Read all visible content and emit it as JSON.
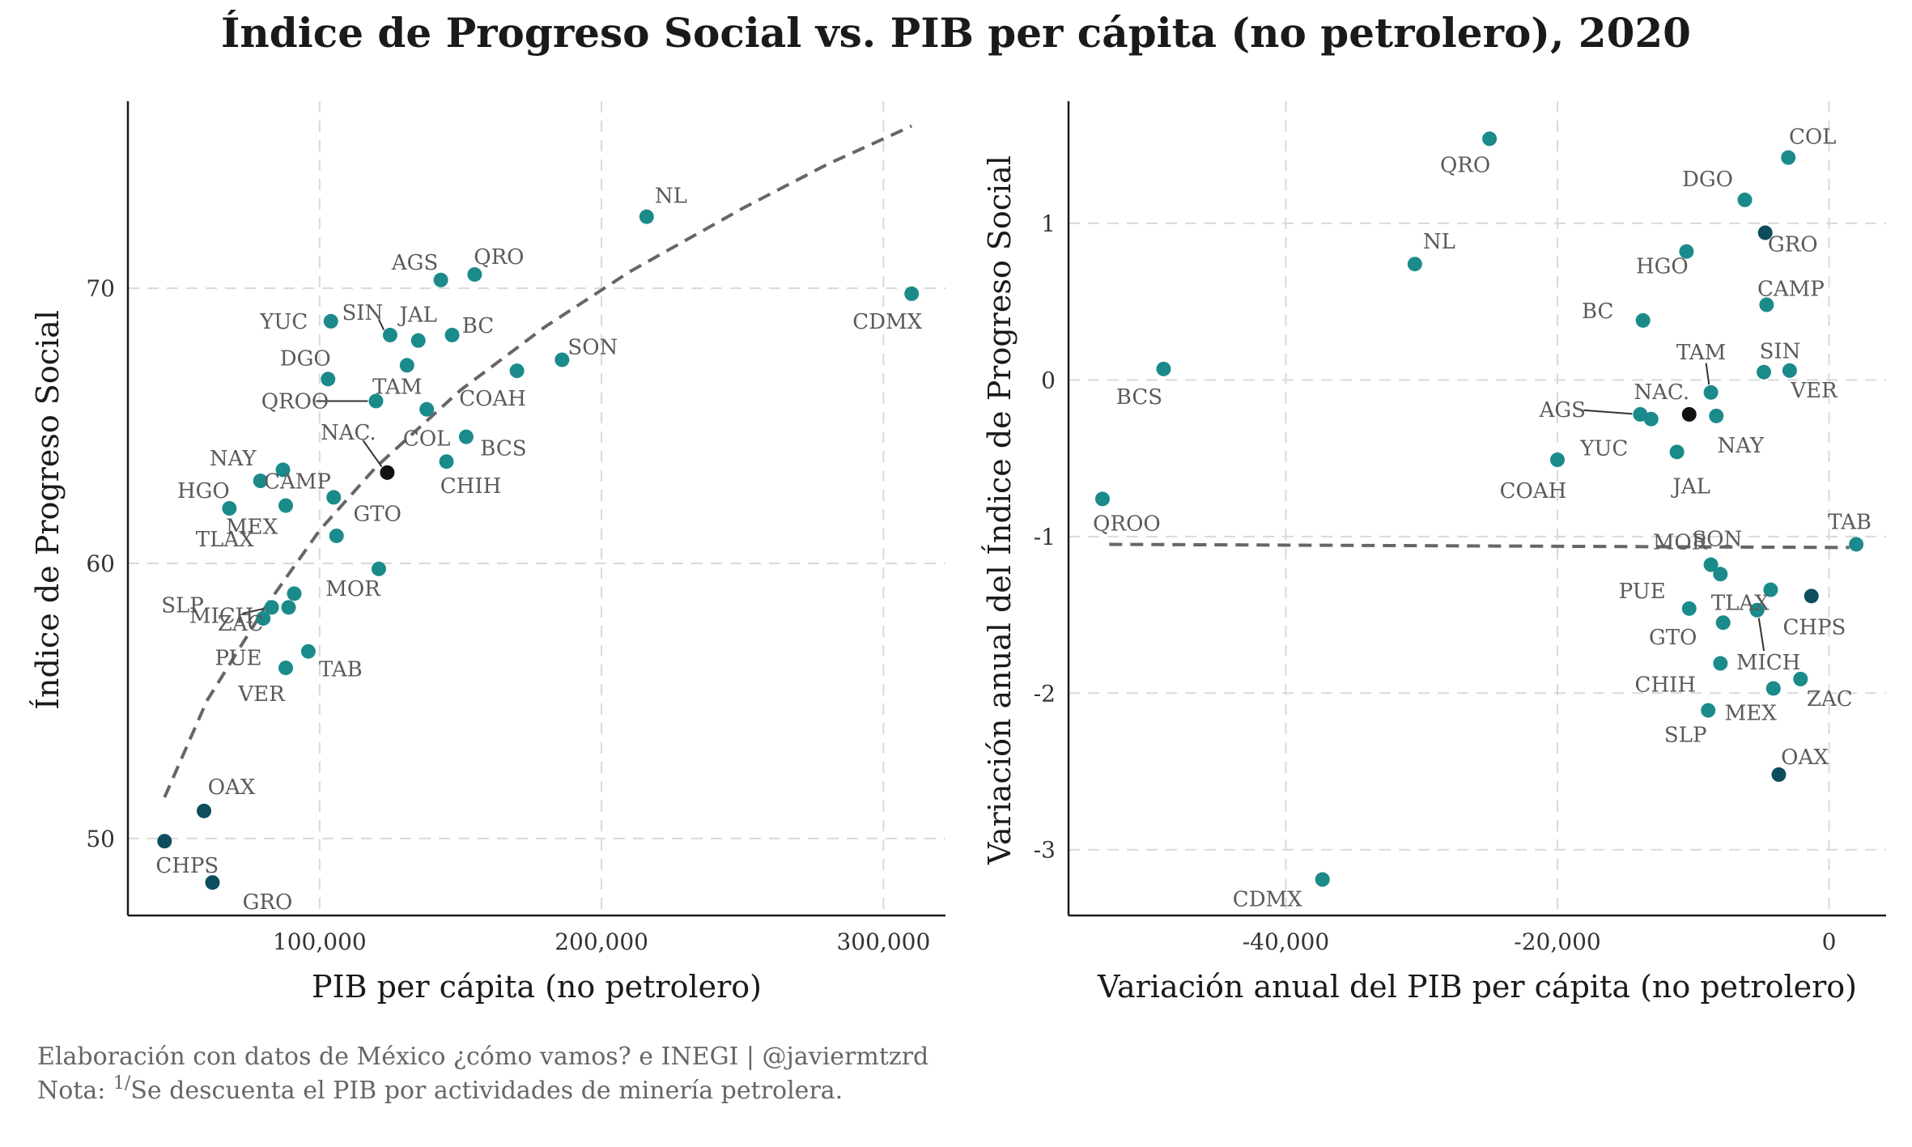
{
  "title": "Índice de Progreso Social vs. PIB per cápita (no petrolero), 2020",
  "caption": {
    "line1": "Elaboración con datos de México ¿cómo vamos? e INEGI | @javiermtzrd",
    "line2_prefix": "Nota: ",
    "line2_super": "1/",
    "line2_rest": "Se descuenta el PIB por actividades de minería petrolera."
  },
  "colors": {
    "teal": "#1b8a8a",
    "dark": "#0d4d5e",
    "national": "#111111"
  },
  "chart_data": [
    {
      "type": "scatter",
      "xlabel": "PIB per cápita (no petrolero)",
      "ylabel": "Índice de Progreso Social",
      "xlim": [
        32000,
        322000
      ],
      "ylim": [
        47.2,
        76.8
      ],
      "xticks": [
        100000,
        200000,
        300000
      ],
      "xtick_labels": [
        "100,000",
        "200,000",
        "300,000"
      ],
      "yticks": [
        50,
        60,
        70
      ],
      "ytick_labels": [
        "50",
        "60",
        "70"
      ],
      "grid": true,
      "trend": "dashed-log",
      "trend_points": [
        [
          45000,
          51.5
        ],
        [
          60000,
          55.0
        ],
        [
          80000,
          58.3
        ],
        [
          100000,
          61.2
        ],
        [
          120000,
          63.5
        ],
        [
          150000,
          66.3
        ],
        [
          180000,
          68.6
        ],
        [
          210000,
          70.6
        ],
        [
          250000,
          72.9
        ],
        [
          280000,
          74.5
        ],
        [
          310000,
          75.9
        ]
      ],
      "points": [
        {
          "label": "NL",
          "x": 216000,
          "y": 72.6,
          "group": "teal"
        },
        {
          "label": "CDMX",
          "x": 310000,
          "y": 69.8,
          "group": "teal"
        },
        {
          "label": "AGS",
          "x": 143000,
          "y": 70.3,
          "group": "teal"
        },
        {
          "label": "QRO",
          "x": 155000,
          "y": 70.5,
          "group": "teal"
        },
        {
          "label": "YUC",
          "x": 104000,
          "y": 68.8,
          "group": "teal"
        },
        {
          "label": "SIN",
          "x": 125000,
          "y": 68.3,
          "group": "teal"
        },
        {
          "label": "JAL",
          "x": 135000,
          "y": 68.1,
          "group": "teal"
        },
        {
          "label": "BC",
          "x": 147000,
          "y": 68.3,
          "group": "teal"
        },
        {
          "label": "SON",
          "x": 186000,
          "y": 67.4,
          "group": "teal"
        },
        {
          "label": "DGO",
          "x": 103000,
          "y": 66.7,
          "group": "teal"
        },
        {
          "label": "TAM",
          "x": 131000,
          "y": 67.2,
          "group": "teal"
        },
        {
          "label": "COAH",
          "x": 170000,
          "y": 67.0,
          "group": "teal"
        },
        {
          "label": "QROO",
          "x": 120000,
          "y": 65.9,
          "group": "teal"
        },
        {
          "label": "COL",
          "x": 138000,
          "y": 65.6,
          "group": "teal"
        },
        {
          "label": "BCS",
          "x": 152000,
          "y": 64.6,
          "group": "teal"
        },
        {
          "label": "CHIH",
          "x": 145000,
          "y": 63.7,
          "group": "teal"
        },
        {
          "label": "NAC.",
          "x": 124000,
          "y": 63.3,
          "group": "national"
        },
        {
          "label": "NAY",
          "x": 79000,
          "y": 63.0,
          "group": "teal"
        },
        {
          "label": "CAMP",
          "x": 87000,
          "y": 63.4,
          "group": "teal"
        },
        {
          "label": "GTO",
          "x": 105000,
          "y": 62.4,
          "group": "teal"
        },
        {
          "label": "HGO",
          "x": 68000,
          "y": 62.0,
          "group": "teal"
        },
        {
          "label": "MEX",
          "x": 88000,
          "y": 62.1,
          "group": "teal"
        },
        {
          "label": "TLAX",
          "x": 106000,
          "y": 61.0,
          "group": "teal"
        },
        {
          "label": "MOR",
          "x": 121000,
          "y": 59.8,
          "group": "teal"
        },
        {
          "label": "SLP",
          "x": 91000,
          "y": 58.9,
          "group": "teal"
        },
        {
          "label": "MICH",
          "x": 83000,
          "y": 58.4,
          "group": "teal"
        },
        {
          "label": "PUE",
          "x": 89000,
          "y": 58.4,
          "group": "teal"
        },
        {
          "label": "ZAC",
          "x": 80000,
          "y": 58.0,
          "group": "teal"
        },
        {
          "label": "TAB",
          "x": 96000,
          "y": 56.8,
          "group": "teal"
        },
        {
          "label": "VER",
          "x": 88000,
          "y": 56.2,
          "group": "teal"
        },
        {
          "label": "OAX",
          "x": 59000,
          "y": 51.0,
          "group": "dark"
        },
        {
          "label": "CHPS",
          "x": 45000,
          "y": 49.9,
          "group": "dark"
        },
        {
          "label": "GRO",
          "x": 62000,
          "y": 48.4,
          "group": "dark"
        }
      ]
    },
    {
      "type": "scatter",
      "xlabel": "Variación anual del PIB per cápita (no petrolero)",
      "ylabel": "Variación anual del Índice de Progreso Social",
      "xlim": [
        -56000,
        4200
      ],
      "ylim": [
        -3.42,
        1.78
      ],
      "xticks": [
        -40000,
        -20000,
        0
      ],
      "xtick_labels": [
        "-40,000",
        "-20,000",
        "0"
      ],
      "yticks": [
        -3,
        -2,
        -1,
        0,
        1
      ],
      "ytick_labels": [
        "-3",
        "-2",
        "-1",
        "0",
        "1"
      ],
      "grid": true,
      "trend": "dashed-linear",
      "trend_points": [
        [
          -53000,
          -1.05
        ],
        [
          1500,
          -1.07
        ]
      ],
      "points": [
        {
          "label": "QRO",
          "x": -25000,
          "y": 1.54,
          "group": "teal"
        },
        {
          "label": "COL",
          "x": -3000,
          "y": 1.42,
          "group": "teal"
        },
        {
          "label": "DGO",
          "x": -6200,
          "y": 1.15,
          "group": "teal"
        },
        {
          "label": "GRO",
          "x": -4700,
          "y": 0.94,
          "group": "dark"
        },
        {
          "label": "NL",
          "x": -30500,
          "y": 0.74,
          "group": "teal"
        },
        {
          "label": "HGO",
          "x": -10500,
          "y": 0.82,
          "group": "teal"
        },
        {
          "label": "CAMP",
          "x": -4600,
          "y": 0.48,
          "group": "teal"
        },
        {
          "label": "BC",
          "x": -13700,
          "y": 0.38,
          "group": "teal"
        },
        {
          "label": "BCS",
          "x": -49000,
          "y": 0.07,
          "group": "teal"
        },
        {
          "label": "SIN",
          "x": -4800,
          "y": 0.05,
          "group": "teal"
        },
        {
          "label": "VER",
          "x": -2900,
          "y": 0.06,
          "group": "teal"
        },
        {
          "label": "TAM",
          "x": -8700,
          "y": -0.08,
          "group": "teal"
        },
        {
          "label": "AGS",
          "x": -13900,
          "y": -0.22,
          "group": "teal"
        },
        {
          "label": "YUC",
          "x": -13100,
          "y": -0.25,
          "group": "teal"
        },
        {
          "label": "NAC.",
          "x": -10300,
          "y": -0.22,
          "group": "national"
        },
        {
          "label": "NAY",
          "x": -8300,
          "y": -0.23,
          "group": "teal"
        },
        {
          "label": "JAL",
          "x": -11200,
          "y": -0.46,
          "group": "teal"
        },
        {
          "label": "COAH",
          "x": -20000,
          "y": -0.51,
          "group": "teal"
        },
        {
          "label": "QROO",
          "x": -53500,
          "y": -0.76,
          "group": "teal"
        },
        {
          "label": "TAB",
          "x": 2000,
          "y": -1.05,
          "group": "teal"
        },
        {
          "label": "MOR",
          "x": -8700,
          "y": -1.18,
          "group": "teal"
        },
        {
          "label": "SON",
          "x": -8000,
          "y": -1.24,
          "group": "teal"
        },
        {
          "label": "CHPS",
          "x": -4300,
          "y": -1.34,
          "group": "teal"
        },
        {
          "label": "TLAX",
          "x": -1300,
          "y": -1.38,
          "group": "dark"
        },
        {
          "label": "PUE",
          "x": -10300,
          "y": -1.46,
          "group": "teal"
        },
        {
          "label": "MICH",
          "x": -5300,
          "y": -1.47,
          "group": "teal"
        },
        {
          "label": "GTO",
          "x": -7800,
          "y": -1.55,
          "group": "teal"
        },
        {
          "label": "CHIH",
          "x": -8000,
          "y": -1.81,
          "group": "teal"
        },
        {
          "label": "ZAC",
          "x": -2100,
          "y": -1.91,
          "group": "teal"
        },
        {
          "label": "MEX",
          "x": -4100,
          "y": -1.97,
          "group": "teal"
        },
        {
          "label": "SLP",
          "x": -8900,
          "y": -2.11,
          "group": "teal"
        },
        {
          "label": "OAX",
          "x": -3700,
          "y": -2.52,
          "group": "dark"
        },
        {
          "label": "CDMX",
          "x": -37300,
          "y": -3.19,
          "group": "teal"
        }
      ]
    }
  ]
}
